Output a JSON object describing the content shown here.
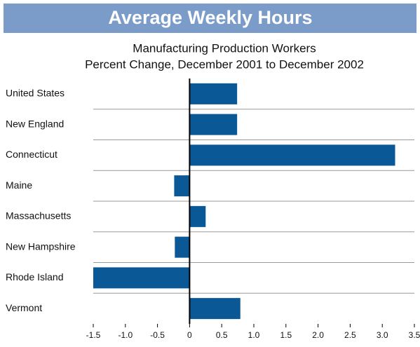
{
  "chart_data": {
    "type": "hbar",
    "title": "Average Weekly Hours",
    "subtitle": [
      "Manufacturing Production Workers",
      "Percent Change, December 2001 to December 2002"
    ],
    "categories": [
      "United States",
      "New England",
      "Connecticut",
      "Maine",
      "Massachusetts",
      "New Hampshire",
      "Rhode Island",
      "Vermont"
    ],
    "values": [
      0.74,
      0.74,
      3.2,
      -0.24,
      0.25,
      -0.23,
      -1.5,
      0.79
    ],
    "color": "#0b5897",
    "xlim": [
      -1.5,
      3.5
    ],
    "xticks": [
      -1.5,
      {
        "value": -1,
        "label": "-1.0"
      },
      -0.5,
      0,
      0.5,
      {
        "value": 1,
        "label": "1.0"
      },
      1.5,
      {
        "value": 2,
        "label": "2.0"
      },
      2.5,
      {
        "value": 3,
        "label": "3.0"
      },
      3.5
    ]
  }
}
